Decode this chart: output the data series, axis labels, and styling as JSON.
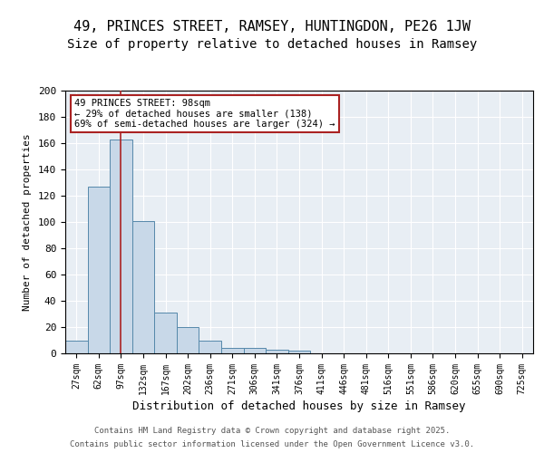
{
  "title1": "49, PRINCES STREET, RAMSEY, HUNTINGDON, PE26 1JW",
  "title2": "Size of property relative to detached houses in Ramsey",
  "xlabel": "Distribution of detached houses by size in Ramsey",
  "ylabel": "Number of detached properties",
  "bar_labels": [
    "27sqm",
    "62sqm",
    "97sqm",
    "132sqm",
    "167sqm",
    "202sqm",
    "236sqm",
    "271sqm",
    "306sqm",
    "341sqm",
    "376sqm",
    "411sqm",
    "446sqm",
    "481sqm",
    "516sqm",
    "551sqm",
    "586sqm",
    "620sqm",
    "655sqm",
    "690sqm",
    "725sqm"
  ],
  "bar_heights": [
    10,
    127,
    163,
    101,
    31,
    20,
    10,
    4,
    4,
    3,
    2,
    0,
    0,
    0,
    0,
    0,
    0,
    0,
    0,
    0,
    0
  ],
  "bar_color": "#c8d8e8",
  "bar_edge_color": "#5588aa",
  "property_line_x": 2,
  "property_line_color": "#aa2222",
  "annotation_line1": "49 PRINCES STREET: 98sqm",
  "annotation_line2": "← 29% of detached houses are smaller (138)",
  "annotation_line3": "69% of semi-detached houses are larger (324) →",
  "annotation_box_color": "#aa2222",
  "ylim": [
    0,
    200
  ],
  "yticks": [
    0,
    20,
    40,
    60,
    80,
    100,
    120,
    140,
    160,
    180,
    200
  ],
  "background_color": "#e8eef4",
  "footer_line1": "Contains HM Land Registry data © Crown copyright and database right 2025.",
  "footer_line2": "Contains public sector information licensed under the Open Government Licence v3.0.",
  "title_fontsize": 11,
  "subtitle_fontsize": 10
}
